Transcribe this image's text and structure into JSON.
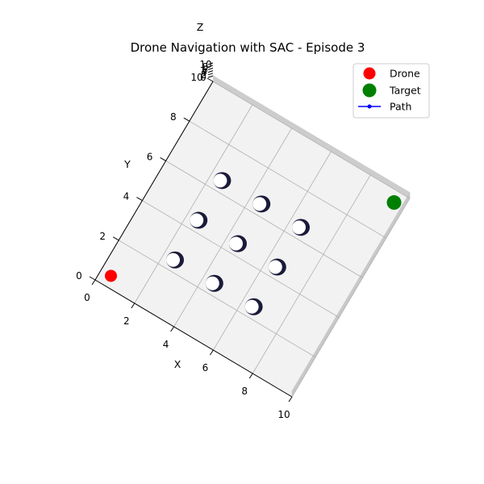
{
  "chart_data": {
    "type": "scatter",
    "view": "3d",
    "title": "Drone Navigation with SAC - Episode 3",
    "xlabel": "X",
    "ylabel": "Y",
    "zlabel": "Z",
    "xlim": [
      0,
      10
    ],
    "ylim": [
      0,
      10
    ],
    "zlim": [
      0,
      10
    ],
    "x_ticks": [
      0,
      2,
      4,
      6,
      8,
      10
    ],
    "y_ticks": [
      0,
      2,
      4,
      6,
      8,
      10
    ],
    "z_ticks": [
      "0",
      "2",
      "4",
      "6",
      "8",
      "10"
    ],
    "grid": true,
    "legend": {
      "position": "top-right",
      "entries": [
        {
          "label": "Drone",
          "color": "#ff0000",
          "marker": "circle"
        },
        {
          "label": "Target",
          "color": "#008000",
          "marker": "circle"
        },
        {
          "label": "Path",
          "color": "#0000ff",
          "marker": "line-dot"
        }
      ]
    },
    "drone": {
      "x": 0.5,
      "y": 0.5,
      "z": 0
    },
    "target": {
      "x": 9.5,
      "y": 9.5,
      "z": 0
    },
    "path": [
      {
        "x": 0.5,
        "y": 0.5,
        "z": 0
      },
      {
        "x": 0.5,
        "y": 0.5,
        "z": 1
      }
    ],
    "obstacles": [
      {
        "x": 2,
        "y": 2
      },
      {
        "x": 2,
        "y": 4
      },
      {
        "x": 2,
        "y": 6
      },
      {
        "x": 4,
        "y": 2
      },
      {
        "x": 4,
        "y": 4
      },
      {
        "x": 4,
        "y": 6
      },
      {
        "x": 6,
        "y": 2
      },
      {
        "x": 6,
        "y": 4
      },
      {
        "x": 6,
        "y": 6
      }
    ],
    "colors": {
      "drone": "#ff0000",
      "target": "#008000",
      "path": "#0000ff",
      "obstacle": "#1a1a3a",
      "pane": "#f2f2f2",
      "grid": "#b0b0b0"
    }
  }
}
